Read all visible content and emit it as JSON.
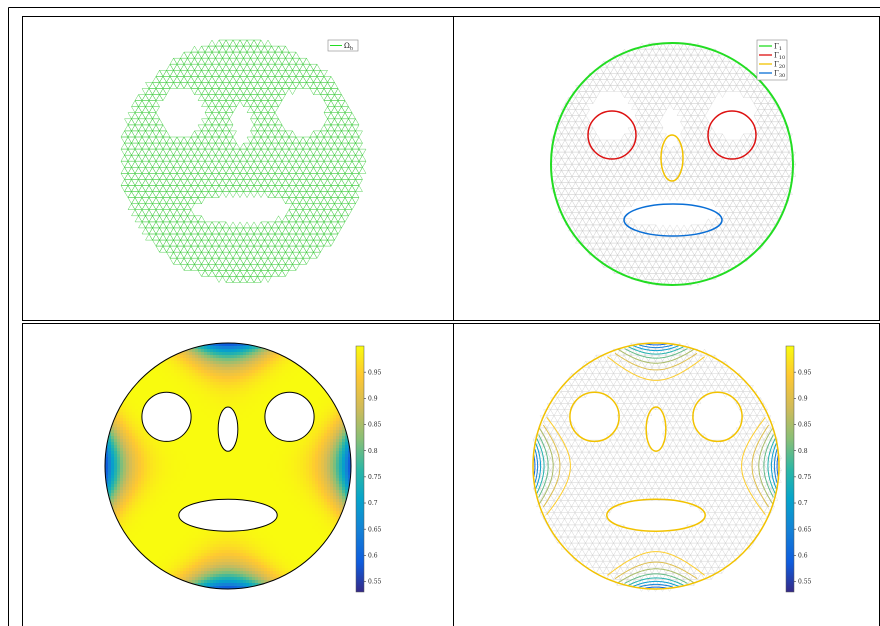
{
  "chart_data": [
    {
      "type": "mesh",
      "panel": "top-left",
      "legend": {
        "position": "top-right",
        "entries": [
          {
            "label": "Ω",
            "sub": "h",
            "color": "#00dd00"
          }
        ]
      },
      "domain": {
        "outer_circle": {
          "cx": 0,
          "cy": 0,
          "r": 1.0
        },
        "holes": [
          {
            "shape": "circle",
            "cx": -0.5,
            "cy": 0.4,
            "r": 0.2
          },
          {
            "shape": "circle",
            "cx": 0.5,
            "cy": 0.4,
            "r": 0.2
          },
          {
            "shape": "ellipse",
            "cx": 0,
            "cy": 0.3,
            "rx": 0.08,
            "ry": 0.18
          },
          {
            "shape": "ellipse",
            "cx": 0,
            "cy": -0.4,
            "rx": 0.4,
            "ry": 0.13
          }
        ]
      },
      "mesh_color": "#44cc44"
    },
    {
      "type": "boundary",
      "panel": "top-right",
      "legend": {
        "position": "top-right",
        "entries": [
          {
            "label": "Γ",
            "sub": "1",
            "color": "#22dd22"
          },
          {
            "label": "Γ",
            "sub": "10",
            "color": "#dd1111"
          },
          {
            "label": "Γ",
            "sub": "20",
            "color": "#f2c200"
          },
          {
            "label": "Γ",
            "sub": "30",
            "color": "#0a6fd6"
          }
        ]
      },
      "mesh_color": "#cccccc"
    },
    {
      "type": "heatmap",
      "panel": "bottom-left",
      "colorbar": {
        "min": 0.53,
        "max": 1.0,
        "ticks": [
          "0.55",
          "0.6",
          "0.65",
          "0.7",
          "0.75",
          "0.8",
          "0.85",
          "0.9",
          "0.95"
        ],
        "colormap": "parula"
      },
      "field": "u(x,y) ≈ 1 − 0.44·|cos(2θ)|^5·(r^2)^3"
    },
    {
      "type": "contour",
      "panel": "bottom-right",
      "colorbar": {
        "min": 0.53,
        "max": 1.0,
        "ticks": [
          "0.55",
          "0.6",
          "0.65",
          "0.7",
          "0.75",
          "0.8",
          "0.85",
          "0.9",
          "0.95"
        ],
        "colormap": "parula"
      },
      "levels": [
        0.55,
        0.6,
        0.65,
        0.7,
        0.75,
        0.8,
        0.85,
        0.9,
        0.95
      ]
    }
  ]
}
